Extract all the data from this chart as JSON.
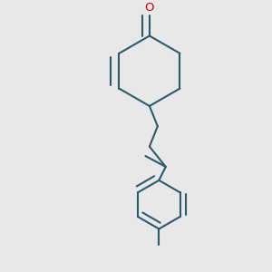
{
  "background_color": "#e8e8e8",
  "line_color": "#2d5a6b",
  "oxygen_color": "#cc0000",
  "line_width": 1.5,
  "figsize": [
    3.0,
    3.0
  ],
  "dpi": 100
}
